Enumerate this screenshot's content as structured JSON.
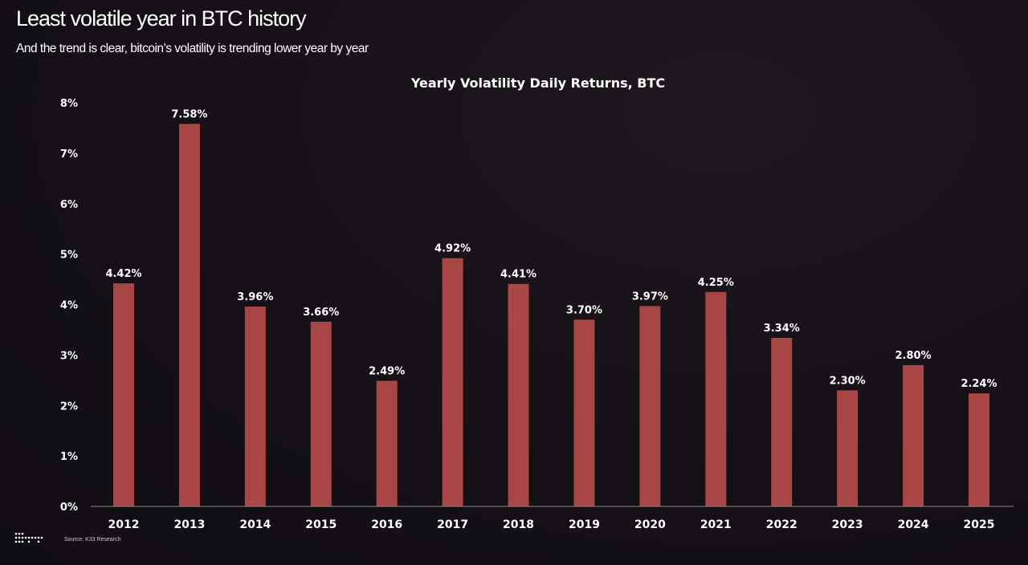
{
  "header": {
    "title": "Least volatile year in BTC history",
    "subtitle": "And the trend is clear, bitcoin’s volatility is trending lower year by year"
  },
  "source": "Source: K33 Research",
  "logo": {
    "icon": "k33-dot-logo"
  },
  "colors": {
    "bar": "#a84545",
    "background": "#151117",
    "text": "#ffffff"
  },
  "chart_data": {
    "type": "bar",
    "title": "Yearly Volatility Daily Returns, BTC",
    "xlabel": "",
    "ylabel": "",
    "categories": [
      "2012",
      "2013",
      "2014",
      "2015",
      "2016",
      "2017",
      "2018",
      "2019",
      "2020",
      "2021",
      "2022",
      "2023",
      "2024",
      "2025"
    ],
    "values": [
      4.42,
      7.58,
      3.96,
      3.66,
      2.49,
      4.92,
      4.41,
      3.7,
      3.97,
      4.25,
      3.34,
      2.3,
      2.8,
      2.24
    ],
    "data_labels": [
      "4.42%",
      "7.58%",
      "3.96%",
      "3.66%",
      "2.49%",
      "4.92%",
      "4.41%",
      "3.70%",
      "3.97%",
      "4.25%",
      "3.34%",
      "2.30%",
      "2.80%",
      "2.24%"
    ],
    "ylim": [
      0,
      8
    ],
    "yticks": [
      "0%",
      "1%",
      "2%",
      "3%",
      "4%",
      "5%",
      "6%",
      "7%",
      "8%"
    ],
    "grid": false,
    "legend": "none"
  }
}
